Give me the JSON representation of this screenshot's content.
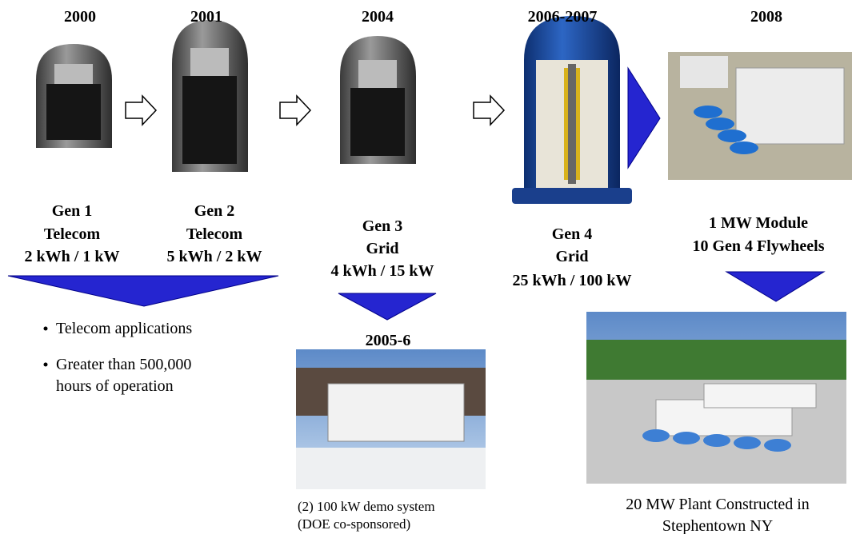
{
  "timeline": [
    {
      "year": "2000",
      "lines": [
        "Gen 1",
        "Telecom",
        "2 kWh / 1 kW"
      ]
    },
    {
      "year": "2001",
      "lines": [
        "Gen 2",
        "Telecom",
        "5 kWh / 2 kW"
      ]
    },
    {
      "year": "2004",
      "lines": [
        "Gen 3",
        "Grid",
        "4 kWh / 15 kW"
      ]
    },
    {
      "year": "2006-2007",
      "lines": [
        "Gen 4",
        "Grid",
        "25 kWh / 100 kW"
      ]
    },
    {
      "year": "2008",
      "lines": [
        "1 MW Module",
        "10 Gen 4 Flywheels"
      ]
    }
  ],
  "bullets": [
    [
      "Telecom applications"
    ],
    [
      "Greater than 500,000",
      "hours of operation"
    ]
  ],
  "demo": {
    "year": "2005-6",
    "caption": [
      "(2) 100 kW demo system",
      "(DOE co-sponsored)"
    ]
  },
  "plant": {
    "caption": [
      "20 MW Plant Constructed in",
      "Stephentown NY"
    ]
  }
}
